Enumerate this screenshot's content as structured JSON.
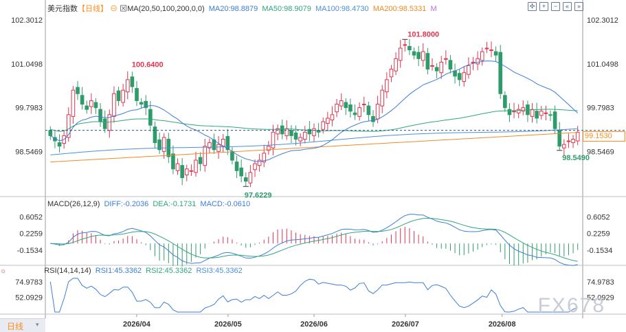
{
  "header": {
    "title": "美元指数",
    "period": "【日线】",
    "ma_label": "MA(20,50,100,200,0,0)",
    "ma20": "MA20:98.8879",
    "ma50": "MA50:98.9079",
    "ma100": "MA100:98.4730",
    "ma200": "MA200:98.5331",
    "ma_m": "M"
  },
  "macd_header": {
    "label": "MACD(26,12,9)",
    "diff": "DIFF:-0.2036",
    "dea": "DEA:-0.1731",
    "macd": "MACD:-0.0610"
  },
  "rsi_header": {
    "label": "RSI(14,14,14)",
    "rsi1": "RSI1:45.3362",
    "rsi2": "RSI2:45.3362",
    "rsi3": "RSI3:45.3362"
  },
  "footer": {
    "period_tab": "日线",
    "watermark": "FX678"
  },
  "toolbar_icons": [
    "crosshair-icon",
    "zoom-in-icon",
    "zoom-out-icon",
    "rewind-icon",
    "forward-icon"
  ],
  "colors": {
    "up": "#e0344f",
    "down": "#2e9c6a",
    "ma20": "#3b7dd8",
    "ma50": "#2fa67a",
    "ma100": "#4a90d9",
    "ma200": "#f08a24",
    "current": "#ff8c1a"
  },
  "chart_data": [
    {
      "type": "candlestick",
      "title": "美元指数",
      "y_ticks": [
        "102.3012",
        "101.0498",
        "99.7983",
        "98.5469"
      ],
      "ylim": [
        97.3,
        102.6
      ],
      "x_ticks": [
        "2026/04",
        "2026/05",
        "2026/06",
        "2026/07",
        "2026/08"
      ],
      "current_price": "99.1530",
      "annotations": {
        "high": "101.8000",
        "high2": "100.6400",
        "low": "97.6229",
        "low2": "98.5490"
      },
      "closes": [
        99.0,
        98.85,
        98.7,
        99.0,
        99.6,
        100.3,
        100.2,
        99.9,
        99.75,
        100.0,
        99.8,
        99.4,
        99.2,
        99.6,
        100.2,
        100.0,
        100.3,
        100.6,
        100.4,
        100.0,
        99.9,
        99.8,
        99.3,
        98.8,
        98.6,
        98.95,
        98.4,
        98.05,
        98.2,
        97.8,
        98.05,
        98.0,
        98.3,
        98.2,
        98.7,
        98.8,
        98.6,
        98.75,
        98.9,
        98.6,
        98.3,
        98.0,
        97.85,
        97.7,
        97.95,
        98.2,
        98.3,
        98.5,
        98.7,
        99.1,
        99.2,
        99.05,
        99.2,
        99.0,
        98.9,
        98.95,
        99.1,
        99.05,
        99.2,
        99.1,
        99.4,
        99.5,
        99.6,
        99.9,
        100.0,
        99.8,
        99.7,
        99.6,
        99.8,
        99.9,
        99.6,
        99.4,
        99.9,
        100.3,
        100.6,
        100.9,
        101.2,
        101.5,
        101.6,
        101.45,
        101.3,
        101.2,
        101.4,
        100.9,
        101.0,
        100.85,
        101.1,
        101.2,
        100.9,
        100.7,
        100.6,
        100.8,
        101.0,
        101.1,
        101.2,
        101.4,
        101.5,
        101.45,
        101.3,
        100.2,
        99.8,
        99.6,
        99.7,
        99.75,
        99.8,
        99.6,
        99.75,
        99.5,
        99.7,
        99.65,
        99.6,
        99.2,
        98.7,
        98.75,
        98.85,
        98.9,
        99.1
      ]
    },
    {
      "type": "macd",
      "y_ticks": [
        "0.6052",
        "0.2259",
        "-0.1534"
      ],
      "ylim": [
        -0.45,
        0.8
      ]
    },
    {
      "type": "line",
      "y_ticks": [
        "74.9783",
        "52.0929"
      ],
      "ylim": [
        28,
        85
      ]
    }
  ]
}
